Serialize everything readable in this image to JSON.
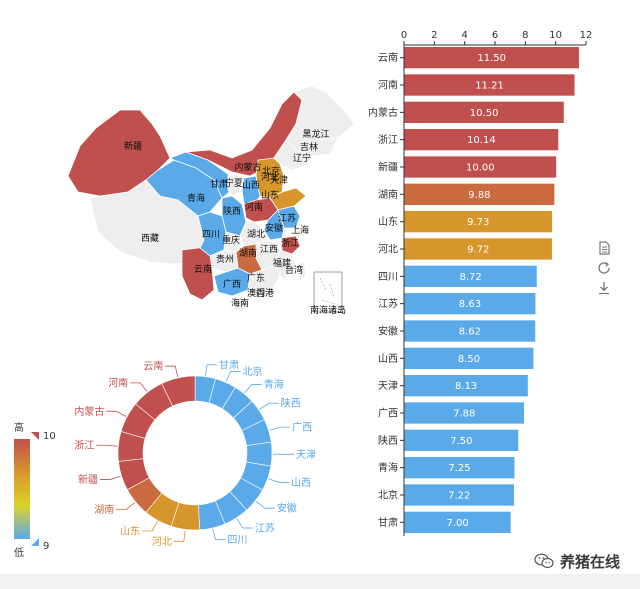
{
  "chart_data": [
    {
      "type": "bar",
      "orientation": "horizontal",
      "categories": [
        "云南",
        "河南",
        "内蒙古",
        "浙江",
        "新疆",
        "湖南",
        "山东",
        "河北",
        "四川",
        "江苏",
        "安徽",
        "山西",
        "天津",
        "广西",
        "陕西",
        "青海",
        "北京",
        "甘肃"
      ],
      "values": [
        11.5,
        11.21,
        10.5,
        10.14,
        10.0,
        9.88,
        9.73,
        9.72,
        8.72,
        8.63,
        8.62,
        8.5,
        8.13,
        7.88,
        7.5,
        7.25,
        7.22,
        7.0
      ],
      "value_labels": [
        "11.50",
        "11.21",
        "10.50",
        "10.14",
        "10.00",
        "9.88",
        "9.73",
        "9.72",
        "8.72",
        "8.63",
        "8.62",
        "8.50",
        "8.13",
        "7.88",
        "7.50",
        "7.25",
        "7.22",
        "7.00"
      ],
      "xticks": [
        "0",
        "2",
        "4",
        "6",
        "8",
        "10",
        "12"
      ],
      "xlim": [
        0,
        12
      ],
      "colors": [
        "#c0504d",
        "#c0504d",
        "#c0504d",
        "#c0504d",
        "#c0504d",
        "#c96b3e",
        "#d6962c",
        "#d6962c",
        "#5aaaea",
        "#5aaaea",
        "#5aaaea",
        "#5aaaea",
        "#5aaaea",
        "#5aaaea",
        "#5aaaea",
        "#5aaaea",
        "#5aaaea",
        "#5aaaea"
      ]
    },
    {
      "type": "pie",
      "style": "donut",
      "slices": [
        {
          "label": "甘肃",
          "value": 7.0,
          "color": "#5aaaea"
        },
        {
          "label": "北京",
          "value": 7.22,
          "color": "#5aaaea"
        },
        {
          "label": "青海",
          "value": 7.25,
          "color": "#5aaaea"
        },
        {
          "label": "陕西",
          "value": 7.5,
          "color": "#5aaaea"
        },
        {
          "label": "广西",
          "value": 7.88,
          "color": "#5aaaea"
        },
        {
          "label": "天津",
          "value": 8.13,
          "color": "#5aaaea"
        },
        {
          "label": "山西",
          "value": 8.5,
          "color": "#5aaaea"
        },
        {
          "label": "安徽",
          "value": 8.62,
          "color": "#5aaaea"
        },
        {
          "label": "江苏",
          "value": 8.63,
          "color": "#5aaaea"
        },
        {
          "label": "四川",
          "value": 8.72,
          "color": "#5aaaea"
        },
        {
          "label": "河北",
          "value": 9.72,
          "color": "#d6962c"
        },
        {
          "label": "山东",
          "value": 9.73,
          "color": "#d6962c"
        },
        {
          "label": "湖南",
          "value": 9.88,
          "color": "#c96b3e"
        },
        {
          "label": "新疆",
          "value": 10.0,
          "color": "#c0504d"
        },
        {
          "label": "浙江",
          "value": 10.14,
          "color": "#c0504d"
        },
        {
          "label": "内蒙古",
          "value": 10.5,
          "color": "#c0504d"
        },
        {
          "label": "河南",
          "value": 11.21,
          "color": "#c0504d"
        },
        {
          "label": "云南",
          "value": 11.5,
          "color": "#c0504d"
        }
      ]
    },
    {
      "type": "map",
      "regions": [
        {
          "label": "新疆",
          "color": "#c0504d"
        },
        {
          "label": "西藏",
          "color": "#eeeeee"
        },
        {
          "label": "青海",
          "color": "#5aaaea"
        },
        {
          "label": "甘肃",
          "color": "#5aaaea"
        },
        {
          "label": "内蒙古",
          "color": "#c0504d"
        },
        {
          "label": "黑龙江",
          "color": "#eeeeee"
        },
        {
          "label": "吉林",
          "color": "#eeeeee"
        },
        {
          "label": "辽宁",
          "color": "#eeeeee"
        },
        {
          "label": "宁夏",
          "color": "#eeeeee"
        },
        {
          "label": "山西",
          "color": "#5aaaea"
        },
        {
          "label": "北京",
          "color": "#5aaaea"
        },
        {
          "label": "天津",
          "color": "#5aaaea"
        },
        {
          "label": "河北",
          "color": "#d6962c"
        },
        {
          "label": "山东",
          "color": "#d6962c"
        },
        {
          "label": "陕西",
          "color": "#5aaaea"
        },
        {
          "label": "河南",
          "color": "#c0504d"
        },
        {
          "label": "江苏",
          "color": "#5aaaea"
        },
        {
          "label": "安徽",
          "color": "#5aaaea"
        },
        {
          "label": "上海",
          "color": "#eeeeee"
        },
        {
          "label": "四川",
          "color": "#5aaaea"
        },
        {
          "label": "重庆",
          "color": "#eeeeee"
        },
        {
          "label": "湖北",
          "color": "#eeeeee"
        },
        {
          "label": "浙江",
          "color": "#c0504d"
        },
        {
          "label": "江西",
          "color": "#eeeeee"
        },
        {
          "label": "湖南",
          "color": "#c96b3e"
        },
        {
          "label": "贵州",
          "color": "#eeeeee"
        },
        {
          "label": "云南",
          "color": "#c0504d"
        },
        {
          "label": "广西",
          "color": "#5aaaea"
        },
        {
          "label": "广东",
          "color": "#eeeeee"
        },
        {
          "label": "福建",
          "color": "#eeeeee"
        },
        {
          "label": "台湾",
          "color": "#eeeeee"
        },
        {
          "label": "香港",
          "color": "#eeeeee"
        },
        {
          "label": "澳门",
          "color": "#eeeeee"
        },
        {
          "label": "海南",
          "color": "#eeeeee"
        },
        {
          "label": "南海诸岛",
          "color": "#ffffff"
        }
      ]
    }
  ],
  "visual_map": {
    "max_label": "10",
    "min_label": "9",
    "high_text": "高",
    "low_text": "低",
    "colors": [
      "#c0504d",
      "#d6962c",
      "#dcd22c",
      "#5aaaea"
    ]
  },
  "watermark": {
    "text": "养猪在线"
  },
  "toolbox": {
    "icons": [
      "data-view-icon",
      "restore-icon",
      "save-image-icon"
    ]
  }
}
